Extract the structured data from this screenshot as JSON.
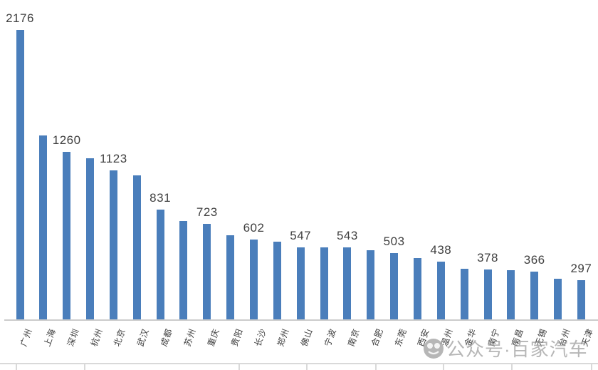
{
  "chart_data": {
    "type": "bar",
    "title": "",
    "xlabel": "",
    "ylabel": "",
    "categories": [
      "广州",
      "上海",
      "深圳",
      "杭州",
      "北京",
      "武汉",
      "成都",
      "苏州",
      "重庆",
      "贵阳",
      "长沙",
      "郑州",
      "佛山",
      "宁波",
      "南京",
      "合肥",
      "东莞",
      "西安",
      "温州",
      "金华",
      "南宁",
      "南昌",
      "无锡",
      "台州",
      "天津"
    ],
    "values": [
      2176,
      1385,
      1260,
      1214,
      1123,
      1085,
      831,
      743,
      723,
      636,
      602,
      588,
      547,
      545,
      543,
      524,
      503,
      465,
      438,
      385,
      378,
      374,
      366,
      310,
      297
    ],
    "data_labels": [
      "2176",
      "",
      "1260",
      "",
      "1123",
      "",
      "831",
      "",
      "723",
      "",
      "602",
      "",
      "547",
      "",
      "543",
      "",
      "503",
      "",
      "438",
      "",
      "378",
      "",
      "366",
      "",
      "297"
    ],
    "ylim": [
      0,
      2300
    ],
    "grid": false,
    "legend": false,
    "bar_color": "#4A7EBB",
    "x_tick_rotation_deg": -70
  },
  "watermark": {
    "text": "公众号·百家汽车",
    "icon": "panda-logo-icon"
  },
  "colors": {
    "background": "#ffffff",
    "bar": "#4A7EBB",
    "value_label_text": "#3f3f3f",
    "axis_label_text": "#404040",
    "axis_line": "#cccccc",
    "table_gridline": "#d9d9d9",
    "watermark_gray": "#9a9a9a"
  }
}
